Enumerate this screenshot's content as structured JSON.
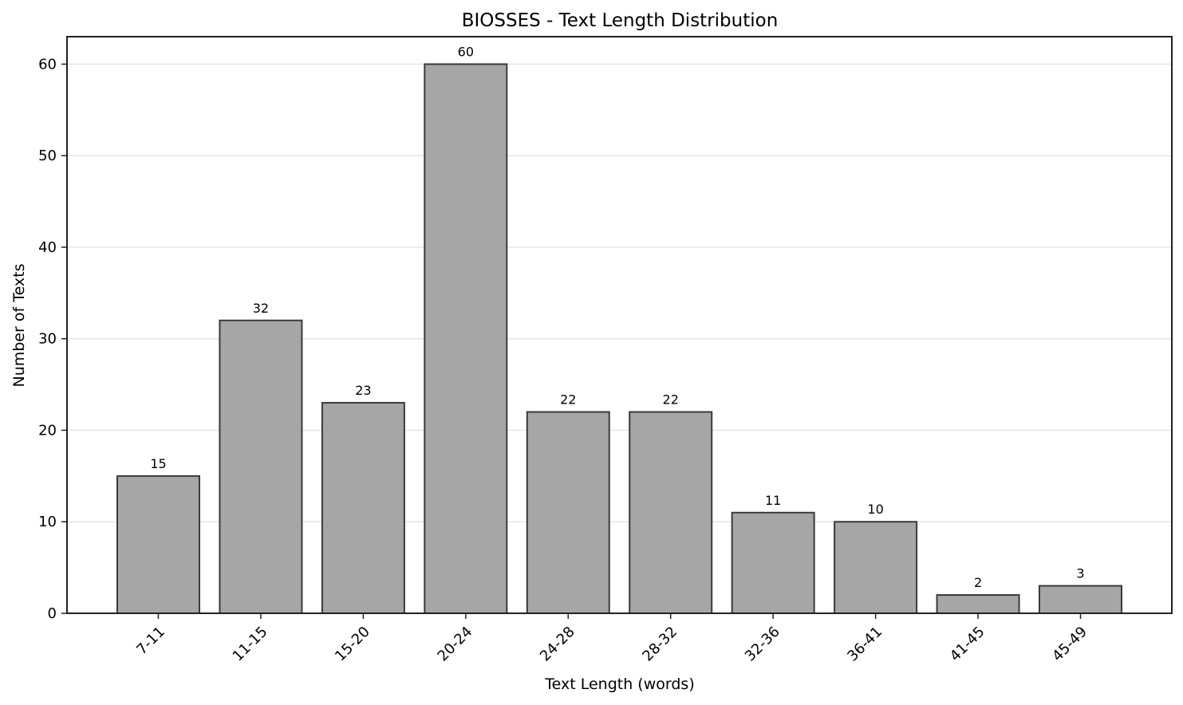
{
  "chart_data": {
    "type": "bar",
    "title": "BIOSSES - Text Length Distribution",
    "xlabel": "Text Length (words)",
    "ylabel": "Number of Texts",
    "categories": [
      "7-11",
      "11-15",
      "15-20",
      "20-24",
      "24-28",
      "28-32",
      "32-36",
      "36-41",
      "41-45",
      "45-49"
    ],
    "values": [
      15,
      32,
      23,
      60,
      22,
      22,
      11,
      10,
      2,
      3
    ],
    "ylim": [
      0,
      63
    ],
    "yticks": [
      0,
      10,
      20,
      30,
      40,
      50,
      60
    ],
    "grid": "y",
    "bar_color": "#a6a6a6",
    "edge_color": "#3a3a3a",
    "show_value_labels": true
  }
}
